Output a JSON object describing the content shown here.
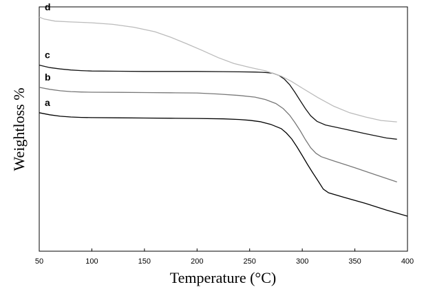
{
  "chart_data": {
    "type": "line",
    "title": "",
    "xlabel": "Temperature (°C)",
    "ylabel": "Weightloss %",
    "xlim": [
      50,
      400
    ],
    "xticks": [
      "50",
      "100",
      "150",
      "200",
      "250",
      "300",
      "350",
      "400"
    ],
    "y_tick_labels": false,
    "grid": false,
    "legend": "inline labels at left",
    "series": [
      {
        "name": "a",
        "color": "#000000",
        "points": [
          [
            50,
            0.68
          ],
          [
            60,
            0.67
          ],
          [
            70,
            0.663
          ],
          [
            80,
            0.659
          ],
          [
            90,
            0.657
          ],
          [
            100,
            0.656
          ],
          [
            125,
            0.655
          ],
          [
            150,
            0.654
          ],
          [
            175,
            0.653
          ],
          [
            200,
            0.652
          ],
          [
            225,
            0.65
          ],
          [
            240,
            0.647
          ],
          [
            250,
            0.643
          ],
          [
            260,
            0.636
          ],
          [
            270,
            0.623
          ],
          [
            280,
            0.602
          ],
          [
            285,
            0.58
          ],
          [
            290,
            0.551
          ],
          [
            295,
            0.512
          ],
          [
            300,
            0.47
          ],
          [
            305,
            0.426
          ],
          [
            310,
            0.385
          ],
          [
            315,
            0.345
          ],
          [
            320,
            0.305
          ],
          [
            325,
            0.287
          ],
          [
            340,
            0.264
          ],
          [
            360,
            0.235
          ],
          [
            380,
            0.202
          ],
          [
            400,
            0.172
          ]
        ]
      },
      {
        "name": "b",
        "color": "#777777",
        "points": [
          [
            50,
            0.805
          ],
          [
            60,
            0.795
          ],
          [
            70,
            0.788
          ],
          [
            80,
            0.784
          ],
          [
            90,
            0.782
          ],
          [
            100,
            0.781
          ],
          [
            125,
            0.78
          ],
          [
            150,
            0.779
          ],
          [
            175,
            0.778
          ],
          [
            200,
            0.777
          ],
          [
            220,
            0.772
          ],
          [
            240,
            0.765
          ],
          [
            255,
            0.757
          ],
          [
            265,
            0.745
          ],
          [
            275,
            0.725
          ],
          [
            282,
            0.7
          ],
          [
            288,
            0.668
          ],
          [
            293,
            0.632
          ],
          [
            298,
            0.592
          ],
          [
            303,
            0.548
          ],
          [
            308,
            0.508
          ],
          [
            313,
            0.481
          ],
          [
            318,
            0.464
          ],
          [
            330,
            0.443
          ],
          [
            350,
            0.41
          ],
          [
            370,
            0.375
          ],
          [
            390,
            0.34
          ]
        ]
      },
      {
        "name": "c",
        "color": "#111111",
        "points": [
          [
            50,
            0.914
          ],
          [
            60,
            0.902
          ],
          [
            70,
            0.895
          ],
          [
            80,
            0.89
          ],
          [
            90,
            0.887
          ],
          [
            100,
            0.885
          ],
          [
            125,
            0.884
          ],
          [
            150,
            0.883
          ],
          [
            175,
            0.883
          ],
          [
            200,
            0.883
          ],
          [
            225,
            0.882
          ],
          [
            240,
            0.881
          ],
          [
            255,
            0.88
          ],
          [
            265,
            0.878
          ],
          [
            272,
            0.874
          ],
          [
            278,
            0.863
          ],
          [
            283,
            0.845
          ],
          [
            288,
            0.818
          ],
          [
            293,
            0.781
          ],
          [
            298,
            0.74
          ],
          [
            303,
            0.7
          ],
          [
            308,
            0.665
          ],
          [
            314,
            0.638
          ],
          [
            322,
            0.62
          ],
          [
            340,
            0.6
          ],
          [
            360,
            0.577
          ],
          [
            380,
            0.556
          ],
          [
            390,
            0.55
          ]
        ]
      },
      {
        "name": "d",
        "color": "#bbbbbb",
        "points": [
          [
            50,
            1.15
          ],
          [
            55,
            1.14
          ],
          [
            65,
            1.13
          ],
          [
            80,
            1.126
          ],
          [
            100,
            1.122
          ],
          [
            120,
            1.114
          ],
          [
            140,
            1.1
          ],
          [
            160,
            1.078
          ],
          [
            175,
            1.051
          ],
          [
            190,
            1.019
          ],
          [
            205,
            0.986
          ],
          [
            220,
            0.951
          ],
          [
            235,
            0.922
          ],
          [
            250,
            0.903
          ],
          [
            265,
            0.886
          ],
          [
            280,
            0.86
          ],
          [
            290,
            0.833
          ],
          [
            300,
            0.801
          ],
          [
            315,
            0.754
          ],
          [
            330,
            0.712
          ],
          [
            345,
            0.68
          ],
          [
            360,
            0.659
          ],
          [
            375,
            0.642
          ],
          [
            390,
            0.635
          ]
        ]
      }
    ]
  }
}
